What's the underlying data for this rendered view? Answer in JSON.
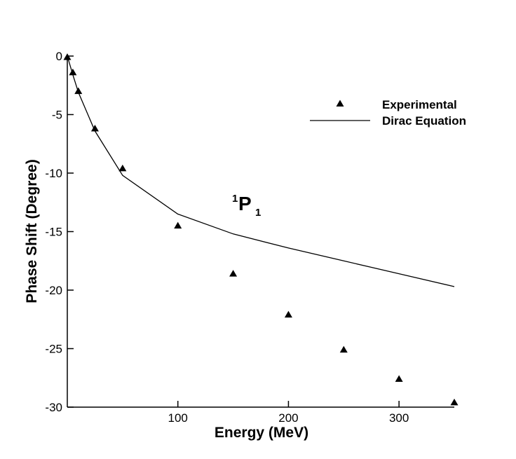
{
  "chart_data": {
    "type": "scatter",
    "title": "",
    "xlabel": "Energy (MeV)",
    "ylabel": "Phase Shift (Degree)",
    "xlim": [
      0,
      350
    ],
    "ylim": [
      -30,
      0
    ],
    "x_ticks": [
      100,
      200,
      300
    ],
    "y_ticks": [
      0,
      -5,
      -10,
      -15,
      -20,
      -25,
      -30
    ],
    "grid": false,
    "legend_position": "top-right",
    "annotation": {
      "base": "P",
      "superscript": "1",
      "subscript": "1"
    },
    "series": [
      {
        "name": "Experimental",
        "kind": "scatter",
        "marker": "triangle",
        "color": "#000000",
        "x": [
          0,
          5,
          10,
          25,
          50,
          100,
          150,
          200,
          250,
          300,
          350
        ],
        "y": [
          -0.1,
          -1.4,
          -3.0,
          -6.2,
          -9.6,
          -14.5,
          -18.6,
          -22.1,
          -25.1,
          -27.6,
          -29.6
        ]
      },
      {
        "name": "Dirac Equation",
        "kind": "line",
        "color": "#000000",
        "x": [
          0,
          5,
          10,
          25,
          50,
          100,
          150,
          200,
          250,
          300,
          350
        ],
        "y": [
          0.0,
          -1.6,
          -3.1,
          -6.4,
          -10.2,
          -13.5,
          -15.2,
          -16.4,
          -17.5,
          -18.6,
          -19.7
        ]
      }
    ]
  }
}
